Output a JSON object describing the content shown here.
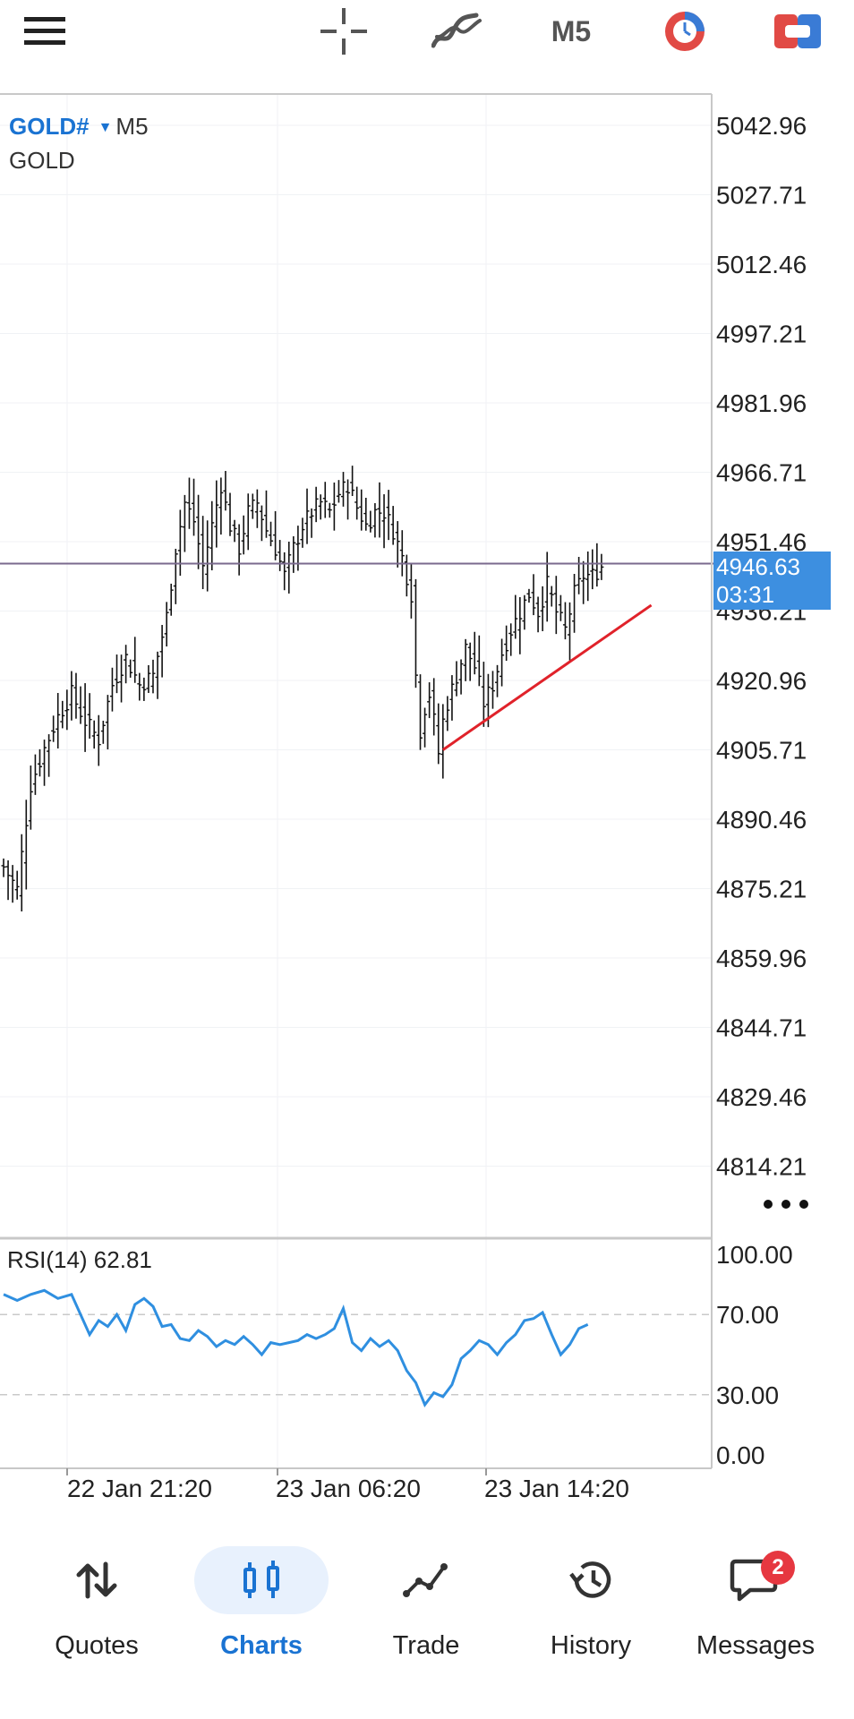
{
  "toolbar": {
    "menu_icon": "hamburger-menu-icon",
    "crosshair_icon": "crosshair-icon",
    "indicators_icon": "indicators-icon",
    "timeframe": "M5",
    "clock_icon": "timer-icon",
    "trade_icon": "one-click-trade-icon"
  },
  "chart": {
    "symbol": "GOLD#",
    "timeframe": "M5",
    "description": "GOLD",
    "current_price": "4946.63",
    "countdown": "03:31",
    "price_axis": [
      "5042.96",
      "5027.71",
      "5012.46",
      "4997.21",
      "4981.96",
      "4966.71",
      "4951.46",
      "4936.21",
      "4920.96",
      "4905.71",
      "4890.46",
      "4875.21",
      "4859.96",
      "4844.71",
      "4829.46",
      "4814.21"
    ],
    "time_axis": [
      "22 Jan 21:20",
      "23 Jan 06:20",
      "23 Jan 14:20"
    ],
    "rsi_label": "RSI(14) 62.81",
    "rsi_axis": [
      "100.00",
      "70.00",
      "30.00",
      "0.00"
    ],
    "colors": {
      "bars": "#111111",
      "rsi": "#2f8fe0",
      "trendline": "#e0222a",
      "price_line": "#7a6a8e",
      "accent": "#1a73d2"
    }
  },
  "chart_data": {
    "type": "ohlc",
    "title": "GOLD# M5",
    "ylim": [
      4805,
      5050
    ],
    "price_trace": [
      [
        0,
        4880
      ],
      [
        3,
        4875
      ],
      [
        6,
        4898
      ],
      [
        9,
        4906
      ],
      [
        12,
        4913
      ],
      [
        15,
        4918
      ],
      [
        18,
        4912
      ],
      [
        21,
        4908
      ],
      [
        24,
        4920
      ],
      [
        27,
        4926
      ],
      [
        30,
        4920
      ],
      [
        33,
        4922
      ],
      [
        36,
        4935
      ],
      [
        38,
        4950
      ],
      [
        40,
        4960
      ],
      [
        42,
        4956
      ],
      [
        44,
        4946
      ],
      [
        46,
        4955
      ],
      [
        48,
        4964
      ],
      [
        50,
        4955
      ],
      [
        52,
        4950
      ],
      [
        54,
        4958
      ],
      [
        56,
        4960
      ],
      [
        58,
        4954
      ],
      [
        60,
        4950
      ],
      [
        62,
        4944
      ],
      [
        64,
        4950
      ],
      [
        66,
        4955
      ],
      [
        68,
        4958
      ],
      [
        70,
        4960
      ],
      [
        72,
        4958
      ],
      [
        74,
        4962
      ],
      [
        76,
        4964
      ],
      [
        78,
        4959
      ],
      [
        80,
        4955
      ],
      [
        82,
        4958
      ],
      [
        84,
        4958
      ],
      [
        86,
        4954
      ],
      [
        88,
        4948
      ],
      [
        90,
        4940
      ],
      [
        91,
        4922
      ],
      [
        92,
        4910
      ],
      [
        93,
        4915
      ],
      [
        94,
        4918
      ],
      [
        95,
        4912
      ],
      [
        96,
        4905
      ],
      [
        97,
        4912
      ],
      [
        98,
        4916
      ],
      [
        100,
        4922
      ],
      [
        102,
        4928
      ],
      [
        104,
        4924
      ],
      [
        106,
        4916
      ],
      [
        108,
        4920
      ],
      [
        110,
        4927
      ],
      [
        112,
        4932
      ],
      [
        114,
        4936
      ],
      [
        116,
        4940
      ],
      [
        118,
        4936
      ],
      [
        120,
        4942
      ],
      [
        122,
        4936
      ],
      [
        124,
        4932
      ],
      [
        126,
        4940
      ],
      [
        128,
        4944
      ],
      [
        130,
        4944
      ],
      [
        132,
        4946
      ]
    ],
    "trendline": [
      [
        97,
        4905.71
      ],
      [
        143,
        4937.5
      ]
    ],
    "current_price": 4946.63,
    "rsi": {
      "name": "RSI(14)",
      "value": 62.81,
      "ylim": [
        0,
        100
      ],
      "levels": [
        70,
        30
      ],
      "values": [
        [
          0,
          80
        ],
        [
          3,
          77
        ],
        [
          6,
          80
        ],
        [
          9,
          82
        ],
        [
          12,
          78
        ],
        [
          15,
          80
        ],
        [
          17,
          70
        ],
        [
          19,
          60
        ],
        [
          21,
          67
        ],
        [
          23,
          64
        ],
        [
          25,
          70
        ],
        [
          27,
          62
        ],
        [
          29,
          75
        ],
        [
          31,
          78
        ],
        [
          33,
          74
        ],
        [
          35,
          64
        ],
        [
          37,
          65
        ],
        [
          39,
          58
        ],
        [
          41,
          57
        ],
        [
          43,
          62
        ],
        [
          45,
          59
        ],
        [
          47,
          54
        ],
        [
          49,
          57
        ],
        [
          51,
          55
        ],
        [
          53,
          59
        ],
        [
          55,
          55
        ],
        [
          57,
          50
        ],
        [
          59,
          56
        ],
        [
          61,
          55
        ],
        [
          63,
          56
        ],
        [
          65,
          57
        ],
        [
          67,
          60
        ],
        [
          69,
          58
        ],
        [
          71,
          60
        ],
        [
          73,
          63
        ],
        [
          75,
          73
        ],
        [
          77,
          56
        ],
        [
          79,
          52
        ],
        [
          81,
          58
        ],
        [
          83,
          54
        ],
        [
          85,
          57
        ],
        [
          87,
          52
        ],
        [
          89,
          42
        ],
        [
          91,
          36
        ],
        [
          93,
          25
        ],
        [
          95,
          31
        ],
        [
          97,
          29
        ],
        [
          99,
          35
        ],
        [
          101,
          48
        ],
        [
          103,
          52
        ],
        [
          105,
          57
        ],
        [
          107,
          55
        ],
        [
          109,
          50
        ],
        [
          111,
          56
        ],
        [
          113,
          60
        ],
        [
          115,
          67
        ],
        [
          117,
          68
        ],
        [
          119,
          71
        ],
        [
          121,
          60
        ],
        [
          123,
          50
        ],
        [
          125,
          55
        ],
        [
          127,
          63
        ],
        [
          129,
          65
        ]
      ]
    }
  },
  "nav": {
    "items": [
      {
        "label": "Quotes",
        "icon": "quotes-icon"
      },
      {
        "label": "Charts",
        "icon": "charts-icon"
      },
      {
        "label": "Trade",
        "icon": "trade-icon"
      },
      {
        "label": "History",
        "icon": "history-icon"
      },
      {
        "label": "Messages",
        "icon": "messages-icon"
      }
    ],
    "messages_badge": "2",
    "active": "Charts"
  }
}
